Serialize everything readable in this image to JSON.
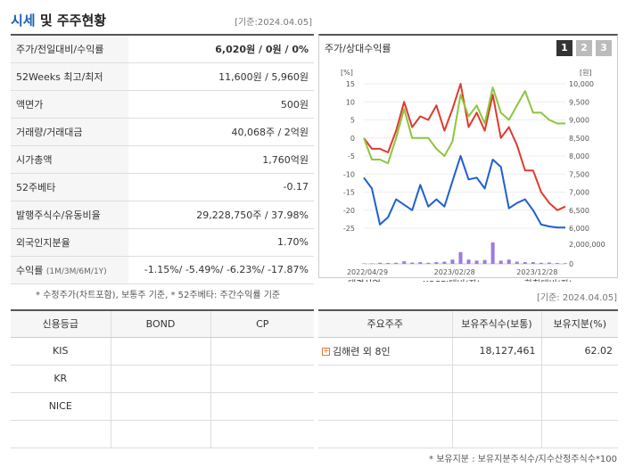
{
  "header": {
    "title_accent": "시세",
    "title_rest": " 및 주주현황",
    "base_date": "[기준:2024.04.05]"
  },
  "price": [
    {
      "label": "주가/전일대비/수익률",
      "value": "6,020원 / 0원 / 0%"
    },
    {
      "label": "52Weeks 최고/최저",
      "value": "11,600원 / 5,960원"
    },
    {
      "label": "액면가",
      "value": "500원"
    },
    {
      "label": "거래량/거래대금",
      "value": "40,068주 / 2억원"
    },
    {
      "label": "시가총액",
      "value": "1,760억원"
    },
    {
      "label": "52주베타",
      "value": "-0.17"
    },
    {
      "label": "발행주식수/유동비율",
      "value": "29,228,750주 / 37.98%"
    },
    {
      "label": "외국인지분율",
      "value": "1.70%"
    }
  ],
  "returns": {
    "label": "수익률",
    "label_sub": "(1M/3M/6M/1Y)",
    "value": "-1.15%/ -5.49%/ -6.23%/ -17.87%"
  },
  "note1": "* 수정주가(차트포함), 보통주 기준, * 52주베타: 주간수익률 기준",
  "chart_panel": {
    "title": "주가/상대수익률",
    "pages": [
      "1",
      "2",
      "3"
    ]
  },
  "chart_data": {
    "type": "line",
    "x_ticks": [
      "2022/04/29",
      "2023/02/28",
      "2023/12/28"
    ],
    "y_left_label": "[%]",
    "y_left_ticks": [
      "15",
      "10",
      "5",
      "0",
      "-5",
      "-10",
      "-15",
      "-20",
      "-25"
    ],
    "y_right_label": "[원]",
    "y_right_ticks": [
      "10,000",
      "9,500",
      "9,000",
      "8,500",
      "8,000",
      "7,500",
      "7,000",
      "6,500",
      "6,000"
    ],
    "vol_ticks": [
      "2,000,000",
      "0"
    ],
    "ylim_left": [
      -25,
      15
    ],
    "ylim_right": [
      6000,
      10000
    ],
    "series": [
      {
        "name": "태경산업",
        "color": "#1f5fd1",
        "axis": "right",
        "values": [
          7400,
          7100,
          6100,
          6300,
          6800,
          6650,
          6500,
          7200,
          6600,
          6800,
          6600,
          7300,
          8000,
          7350,
          7400,
          7100,
          7900,
          7700,
          6550,
          6700,
          6800,
          6500,
          6100,
          6050,
          6020,
          6020
        ]
      },
      {
        "name": "KOSPI대비(좌)",
        "color": "#e03a2e",
        "axis": "left",
        "values": [
          0,
          -3,
          -3,
          -4,
          2,
          10,
          3,
          6,
          5,
          9,
          2,
          8,
          15,
          3,
          7,
          2,
          12,
          0,
          3,
          -2,
          -9,
          -9,
          -15,
          -18,
          -20,
          -19
        ]
      },
      {
        "name": "화학대비(좌)",
        "color": "#8cc63f",
        "axis": "left",
        "values": [
          0,
          -6,
          -6,
          -7,
          0,
          8,
          0,
          0,
          0,
          -3,
          -5,
          -1,
          12,
          6,
          9,
          4,
          14,
          7,
          5,
          9,
          13,
          7,
          7,
          5,
          4,
          4
        ]
      }
    ],
    "volume": {
      "name": "거래량",
      "color": "#9b7be0",
      "values": [
        0.02,
        0.02,
        0.05,
        0.04,
        0.05,
        0.12,
        0.06,
        0.08,
        0.05,
        0.08,
        0.1,
        0.2,
        0.55,
        0.2,
        0.15,
        0.18,
        1.0,
        0.15,
        0.2,
        0.1,
        0.08,
        0.08,
        0.05,
        0.06,
        0.04,
        0.03
      ]
    },
    "legend": [
      "태경산업",
      "KOSPI대비(좌)",
      "화학대비(좌)",
      "거래량"
    ]
  },
  "credit": {
    "headers": [
      "신용등급",
      "BOND",
      "CP"
    ],
    "rows": [
      [
        "KIS",
        "",
        ""
      ],
      [
        "KR",
        "",
        ""
      ],
      [
        "NICE",
        "",
        ""
      ],
      [
        "",
        "",
        ""
      ]
    ]
  },
  "holders": {
    "base_date": "[기준: 2024.04.05]",
    "headers": [
      "주요주주",
      "보유주식수(보통)",
      "보유지분(%)"
    ],
    "rows": [
      [
        "김해련 외 8인",
        "18,127,461",
        "62.02"
      ],
      [
        "",
        "",
        ""
      ],
      [
        "",
        "",
        ""
      ],
      [
        "",
        "",
        ""
      ]
    ]
  },
  "note2": "* 보유지분 : 보유지분주식수/지수산정주식수*100",
  "colors": {
    "accent": "#1a5fb4",
    "blue_value": "#1a5fb4"
  }
}
